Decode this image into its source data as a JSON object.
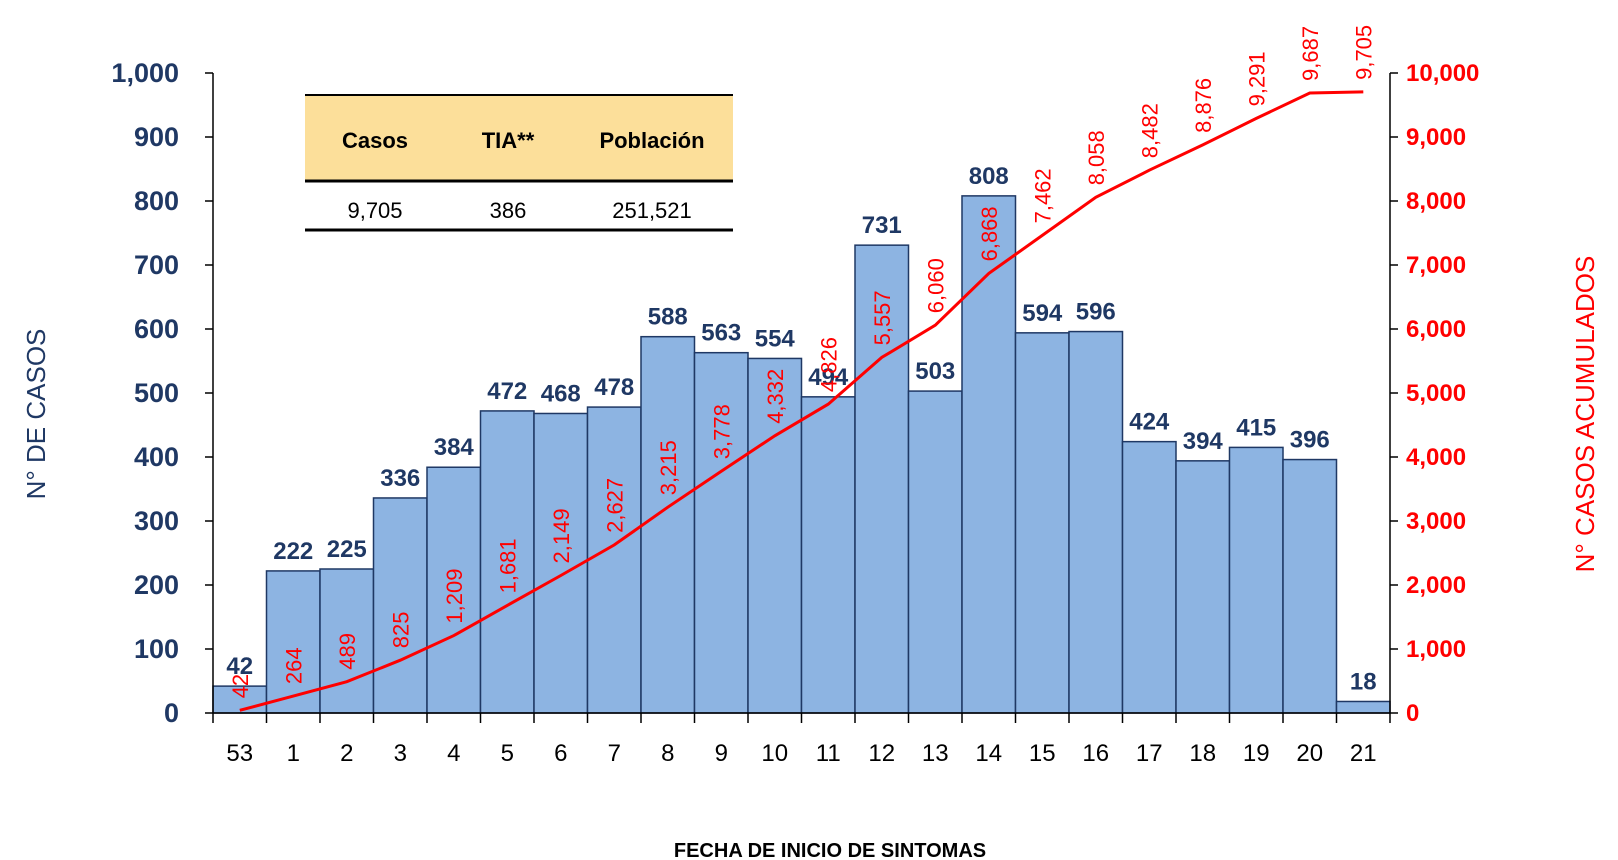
{
  "chart_data": {
    "type": "bar",
    "categories": [
      "53",
      "1",
      "2",
      "3",
      "4",
      "5",
      "6",
      "7",
      "8",
      "9",
      "10",
      "11",
      "12",
      "13",
      "14",
      "15",
      "16",
      "17",
      "18",
      "19",
      "20",
      "21"
    ],
    "series": [
      {
        "type": "bar",
        "values": [
          42,
          222,
          225,
          336,
          384,
          472,
          468,
          478,
          588,
          563,
          554,
          494,
          731,
          503,
          808,
          594,
          596,
          424,
          394,
          415,
          396,
          18
        ],
        "color": "#8db4e2",
        "axis": "left"
      },
      {
        "type": "line",
        "values": [
          42,
          264,
          489,
          825,
          1209,
          1681,
          2149,
          2627,
          3215,
          3778,
          4332,
          4826,
          5557,
          6060,
          6868,
          7462,
          8058,
          8482,
          8876,
          9291,
          9687,
          9705
        ],
        "color": "#ff0000",
        "axis": "right"
      }
    ],
    "bar_labels": [
      "42",
      "222",
      "225",
      "336",
      "384",
      "472",
      "468",
      "478",
      "588",
      "563",
      "554",
      "494",
      "731",
      "503",
      "808",
      "594",
      "596",
      "424",
      "394",
      "415",
      "396",
      "18"
    ],
    "line_labels": [
      "42",
      "264",
      "489",
      "825",
      "1,209",
      "1,681",
      "2,149",
      "2,627",
      "3,215",
      "3,778",
      "4,332",
      "4,826",
      "5,557",
      "6,060",
      "6,868",
      "7,462",
      "8,058",
      "8,482",
      "8,876",
      "9,291",
      "9,687",
      "9,705"
    ],
    "xlabel": "FECHA DE INICIO DE SINTOMAS",
    "ylabel": "N° DE CASOS",
    "ylabel_right": "N° CASOS ACUMULADOS",
    "ylim": [
      0,
      1000
    ],
    "ylim_right": [
      0,
      10000
    ],
    "yticks": [
      "0",
      "100",
      "200",
      "300",
      "400",
      "500",
      "600",
      "700",
      "800",
      "900",
      "1,000"
    ],
    "yticks_right": [
      "0",
      "1,000",
      "2,000",
      "3,000",
      "4,000",
      "5,000",
      "6,000",
      "7,000",
      "8,000",
      "9,000",
      "10,000"
    ],
    "grid": false,
    "colors": {
      "bar_fill": "#8db4e2",
      "bar_edge": "#1f3864",
      "line": "#ff0000",
      "left_axis_text": "#1f3864",
      "right_axis_text": "#ff0000",
      "table_header_bg": "#fcdf9a"
    }
  },
  "summary_table": {
    "headers": [
      "Casos",
      "TIA**",
      "Población"
    ],
    "values": [
      "9,705",
      "386",
      "251,521"
    ]
  }
}
